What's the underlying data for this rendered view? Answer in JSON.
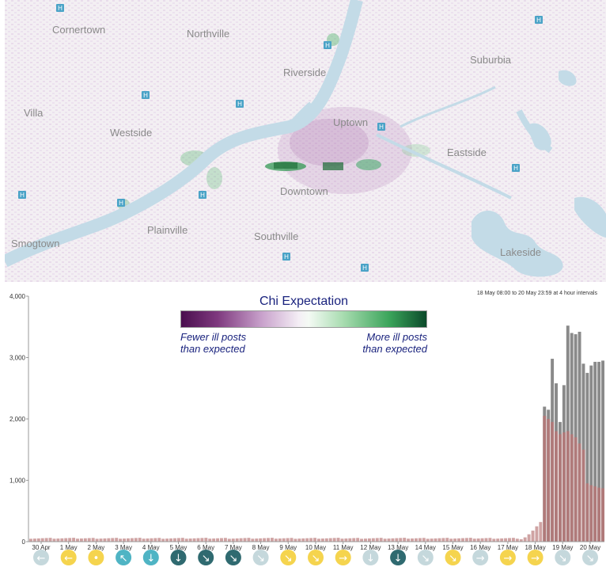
{
  "map": {
    "districts": [
      "Cornertown",
      "Northville",
      "Riverside",
      "Suburbia",
      "Villa",
      "Westside",
      "Uptown",
      "Eastside",
      "Downtown",
      "Plainville",
      "Smogtown",
      "Southville",
      "Lakeside"
    ],
    "colors": {
      "river": "#c3dbe7",
      "lake": "#c3dbe7",
      "land": "#f1eff1",
      "fewer": "#7f3a7f",
      "more": "#1e8a3a",
      "hospital": "#4aa3c7"
    }
  },
  "legend": {
    "title": "Chi Expectation",
    "left_line1": "Fewer ill posts",
    "left_line2": "than expected",
    "right_line1": "More ill posts",
    "right_line2": "than expected"
  },
  "chart_note": "18 May 08:00 to 20 May 23:59 at 4 hour intervals",
  "chart_data": {
    "type": "bar",
    "y_ticks": [
      "0",
      "1,000",
      "2,000",
      "3,000",
      "4,000"
    ],
    "ylim": [
      0,
      4000
    ],
    "x_tick_labels": [
      "30 Apr",
      "1 May",
      "2 May",
      "3 May",
      "4 May",
      "5 May",
      "6 May",
      "7 May",
      "8 May",
      "9 May",
      "10 May",
      "11 May",
      "12 May",
      "13 May",
      "14 May",
      "15 May",
      "16 May",
      "17 May",
      "18 May",
      "19 May",
      "20 May"
    ],
    "baseline_period": {
      "bars": 126,
      "typical_value": 55
    },
    "ramp_values": [
      40,
      70,
      120,
      180,
      250,
      320
    ],
    "selected_series": {
      "total_values": [
        2200,
        2150,
        2980,
        2580,
        1950,
        2550,
        3520,
        3400,
        3380,
        3420,
        2900,
        2750,
        2870,
        2930,
        2930,
        2950
      ],
      "ill_values": [
        2050,
        2000,
        1950,
        1800,
        1750,
        1780,
        1800,
        1750,
        1700,
        1600,
        1500,
        950,
        920,
        900,
        880,
        870
      ]
    },
    "colors": {
      "bar": "#cfa3a3",
      "total": "#8a8a8a",
      "ill": "#b07a7a"
    }
  },
  "wind": [
    {
      "dir": "←",
      "color": "#c5d8dc"
    },
    {
      "dir": "←",
      "color": "#f5d44e"
    },
    {
      "dir": "•",
      "color": "#f5d44e"
    },
    {
      "dir": "↖",
      "color": "#4fb4c4"
    },
    {
      "dir": "↓",
      "color": "#4fb4c4"
    },
    {
      "dir": "↓",
      "color": "#2f6a70"
    },
    {
      "dir": "↘",
      "color": "#2f6a70"
    },
    {
      "dir": "↘",
      "color": "#2f6a70"
    },
    {
      "dir": "↘",
      "color": "#c5d8dc"
    },
    {
      "dir": "↘",
      "color": "#f5d44e"
    },
    {
      "dir": "↘",
      "color": "#f5d44e"
    },
    {
      "dir": "→",
      "color": "#f5d44e"
    },
    {
      "dir": "↓",
      "color": "#c5d8dc"
    },
    {
      "dir": "↓",
      "color": "#2f6a70"
    },
    {
      "dir": "↘",
      "color": "#c5d8dc"
    },
    {
      "dir": "↘",
      "color": "#f5d44e"
    },
    {
      "dir": "→",
      "color": "#c5d8dc"
    },
    {
      "dir": "→",
      "color": "#f5d44e"
    },
    {
      "dir": "→",
      "color": "#f5d44e"
    },
    {
      "dir": "↘",
      "color": "#c5d8dc"
    },
    {
      "dir": "↘",
      "color": "#c5d8dc"
    }
  ]
}
